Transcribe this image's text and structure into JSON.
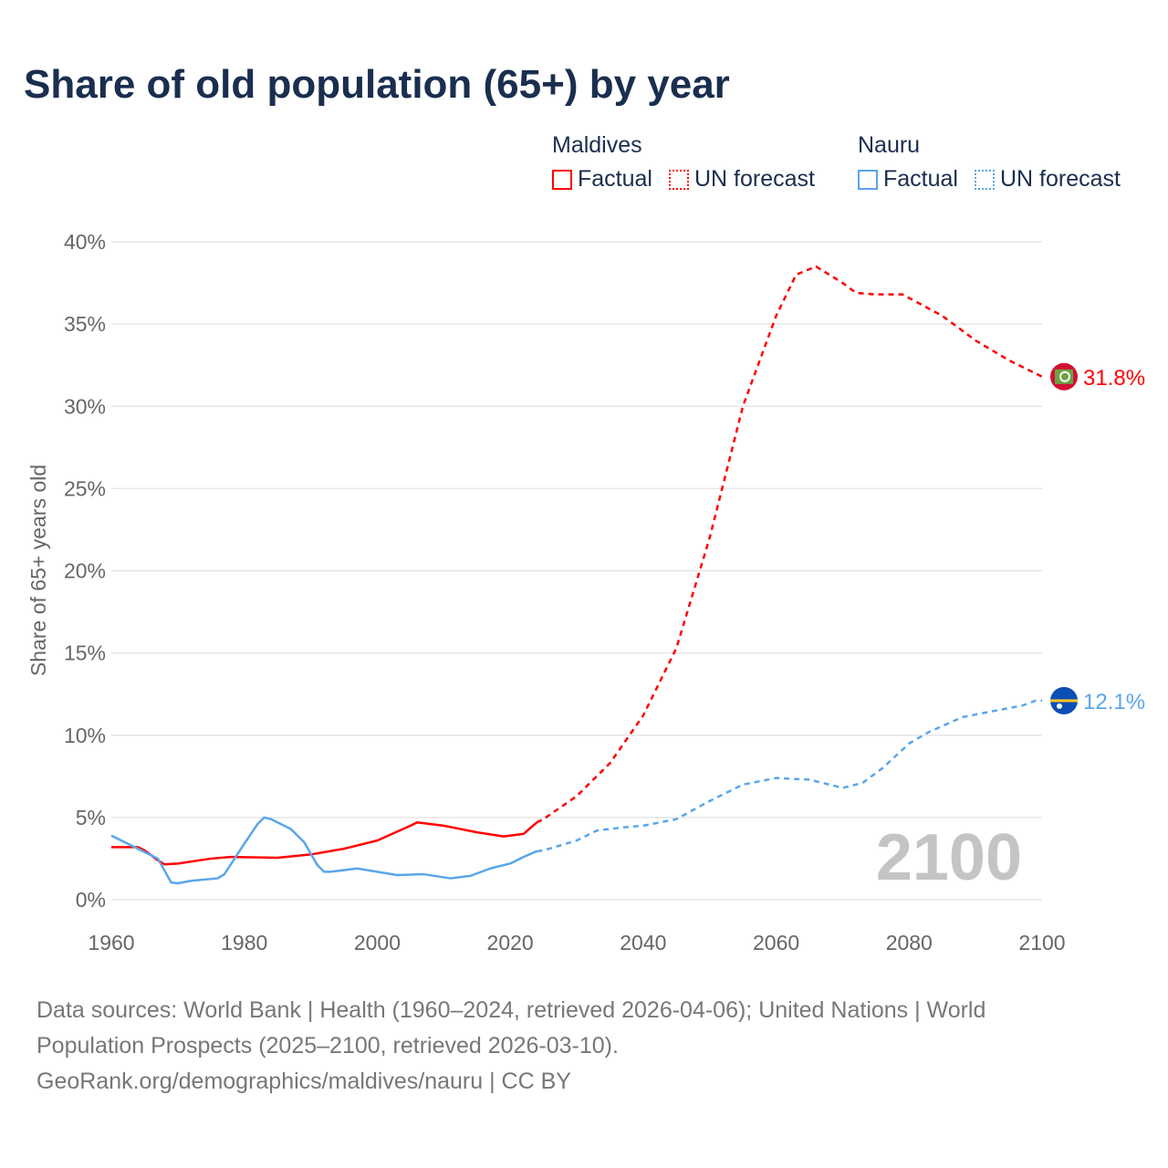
{
  "title": "Share of old population (65+) by year",
  "legend": {
    "groups": [
      {
        "name": "Maldives",
        "color": "#ff0000",
        "items": [
          "Factual",
          "UN forecast"
        ]
      },
      {
        "name": "Nauru",
        "color": "#5aa5ea",
        "items": [
          "Factual",
          "UN forecast"
        ]
      }
    ]
  },
  "footer": {
    "line1": "Data sources: World Bank | Health (1960–2024, retrieved 2026-04-06); United Nations | World",
    "line2": "Population Prospects (2025–2100, retrieved 2026-03-10).",
    "line3": "GeoRank.org/demographics/maldives/nauru | CC BY"
  },
  "chart_data": {
    "type": "line",
    "title": "Share of old population (65+) by year",
    "ylabel": "Share of 65+ years old",
    "xlabel": "",
    "xlim": [
      1960,
      2100
    ],
    "ylim": [
      0,
      40
    ],
    "xticks": [
      "1960",
      "1980",
      "2000",
      "2020",
      "2040",
      "2060",
      "2080",
      "2100"
    ],
    "yticks": [
      "0%",
      "5%",
      "10%",
      "15%",
      "20%",
      "25%",
      "30%",
      "35%",
      "40%"
    ],
    "grid": true,
    "year_label": "2100",
    "series": [
      {
        "name": "Maldives Factual",
        "color": "#ff0000",
        "dashed": false,
        "x": [
          1960,
          1964,
          1965,
          1967,
          1968,
          1970,
          1975,
          1978,
          1985,
          1990,
          1995,
          2000,
          2005,
          2006,
          2010,
          2015,
          2019,
          2022,
          2024
        ],
        "y": [
          3.2,
          3.2,
          3.0,
          2.4,
          2.15,
          2.2,
          2.5,
          2.6,
          2.55,
          2.75,
          3.1,
          3.6,
          4.5,
          4.7,
          4.5,
          4.1,
          3.85,
          4.0,
          4.7
        ]
      },
      {
        "name": "Maldives UN forecast",
        "color": "#ff0000",
        "dashed": true,
        "x": [
          2024,
          2025,
          2030,
          2035,
          2040,
          2045,
          2050,
          2055,
          2060,
          2063,
          2066,
          2070,
          2072,
          2075,
          2079,
          2085,
          2090,
          2095,
          2100
        ],
        "y": [
          4.7,
          4.9,
          6.3,
          8.3,
          11.2,
          15.3,
          22,
          30,
          35.5,
          38,
          38.5,
          37.5,
          36.9,
          36.8,
          36.8,
          35.5,
          34,
          32.8,
          31.8
        ],
        "end_label": "31.8%"
      },
      {
        "name": "Nauru Factual",
        "color": "#5aa5ea",
        "dashed": false,
        "x": [
          1960,
          1965,
          1967,
          1969,
          1970,
          1972,
          1976,
          1977,
          1980,
          1982,
          1983,
          1984,
          1987,
          1989,
          1991,
          1992,
          1993,
          1997,
          2000,
          2003,
          2007,
          2011,
          2014,
          2017,
          2020,
          2022,
          2024
        ],
        "y": [
          3.9,
          2.9,
          2.5,
          1.05,
          1.0,
          1.15,
          1.3,
          1.55,
          3.4,
          4.6,
          5.0,
          4.9,
          4.3,
          3.5,
          2.1,
          1.7,
          1.7,
          1.9,
          1.7,
          1.5,
          1.55,
          1.3,
          1.45,
          1.9,
          2.2,
          2.6,
          2.95
        ]
      },
      {
        "name": "Nauru UN forecast",
        "color": "#5aa5ea",
        "dashed": true,
        "x": [
          2024,
          2025,
          2030,
          2033,
          2037,
          2040,
          2045,
          2050,
          2055,
          2060,
          2065,
          2070,
          2073,
          2076,
          2080,
          2083,
          2088,
          2093,
          2097,
          2099,
          2100
        ],
        "y": [
          2.95,
          3.0,
          3.6,
          4.2,
          4.4,
          4.5,
          4.9,
          6.0,
          7.0,
          7.4,
          7.3,
          6.8,
          7.1,
          8.0,
          9.5,
          10.2,
          11.1,
          11.5,
          11.8,
          12.1,
          12.1
        ],
        "end_label": "12.1%"
      }
    ]
  }
}
